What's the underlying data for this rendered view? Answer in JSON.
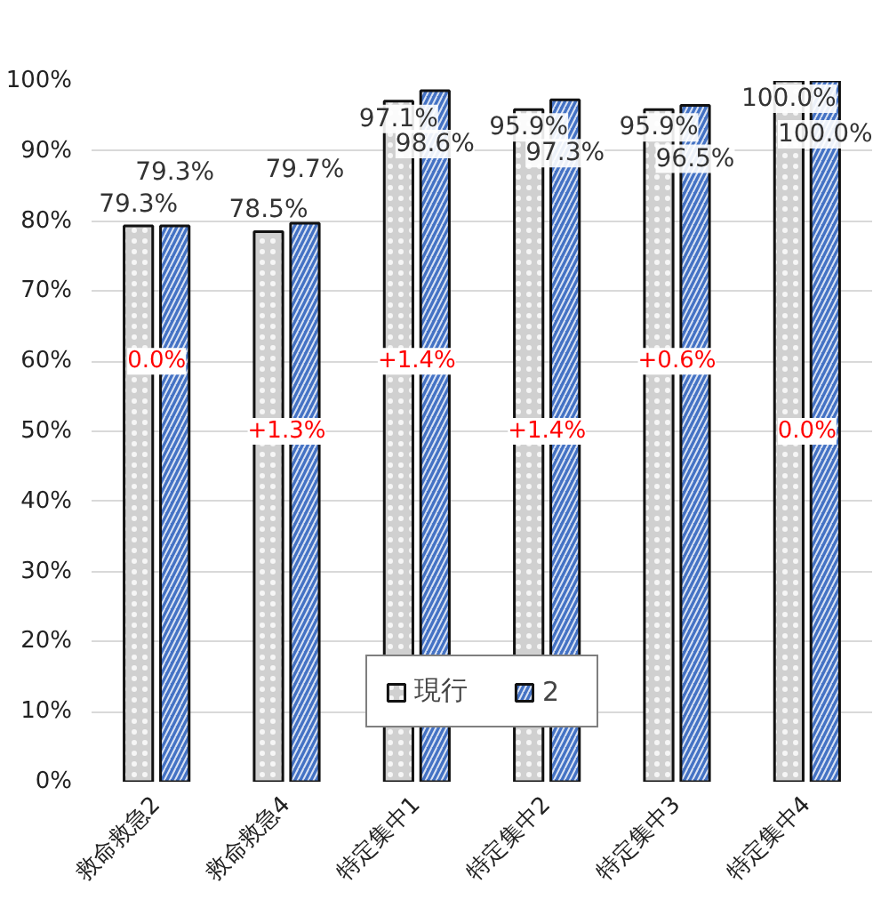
{
  "chart_data": {
    "type": "bar",
    "categories": [
      "救命救急2",
      "救命救急4",
      "特定集中1",
      "特定集中2",
      "特定集中3",
      "特定集中4"
    ],
    "series": [
      {
        "name": "現行",
        "color": "#d0d0d0",
        "values": [
          79.3,
          78.5,
          97.1,
          95.9,
          95.9,
          100.0
        ],
        "value_labels": [
          "79.3%",
          "78.5%",
          "97.1%",
          "95.9%",
          "95.9%",
          "100.0%"
        ]
      },
      {
        "name": "2",
        "color": "#4472c4",
        "values": [
          79.3,
          79.7,
          98.6,
          97.3,
          96.5,
          100.0
        ],
        "value_labels": [
          "79.3%",
          "79.7%",
          "98.6%",
          "97.3%",
          "96.5%",
          "100.0%"
        ]
      }
    ],
    "ylim": [
      0,
      100
    ],
    "yticks": [
      {
        "value": 0,
        "label": "0%"
      },
      {
        "value": 10,
        "label": "10%"
      },
      {
        "value": 20,
        "label": "20%"
      },
      {
        "value": 30,
        "label": "30%"
      },
      {
        "value": 40,
        "label": "40%"
      },
      {
        "value": 50,
        "label": "50%"
      },
      {
        "value": 60,
        "label": "60%"
      },
      {
        "value": 70,
        "label": "70%"
      },
      {
        "value": 80,
        "label": "80%"
      },
      {
        "value": 90,
        "label": "90%"
      },
      {
        "value": 100,
        "label": "100%"
      }
    ],
    "grid": "y",
    "legend": "bottom",
    "annotations": [
      {
        "text": "0.0%",
        "x": "救命救急2",
        "y": 60
      },
      {
        "text": "+1.3%",
        "x": "救命救急4",
        "y": 50
      },
      {
        "text": "+1.4%",
        "x": "特定集中1",
        "y": 60
      },
      {
        "text": "+1.4%",
        "x": "特定集中2",
        "y": 50
      },
      {
        "text": "+0.6%",
        "x": "特定集中3",
        "y": 60
      },
      {
        "text": "0.0%",
        "x": "特定集中4",
        "y": 50
      }
    ]
  }
}
